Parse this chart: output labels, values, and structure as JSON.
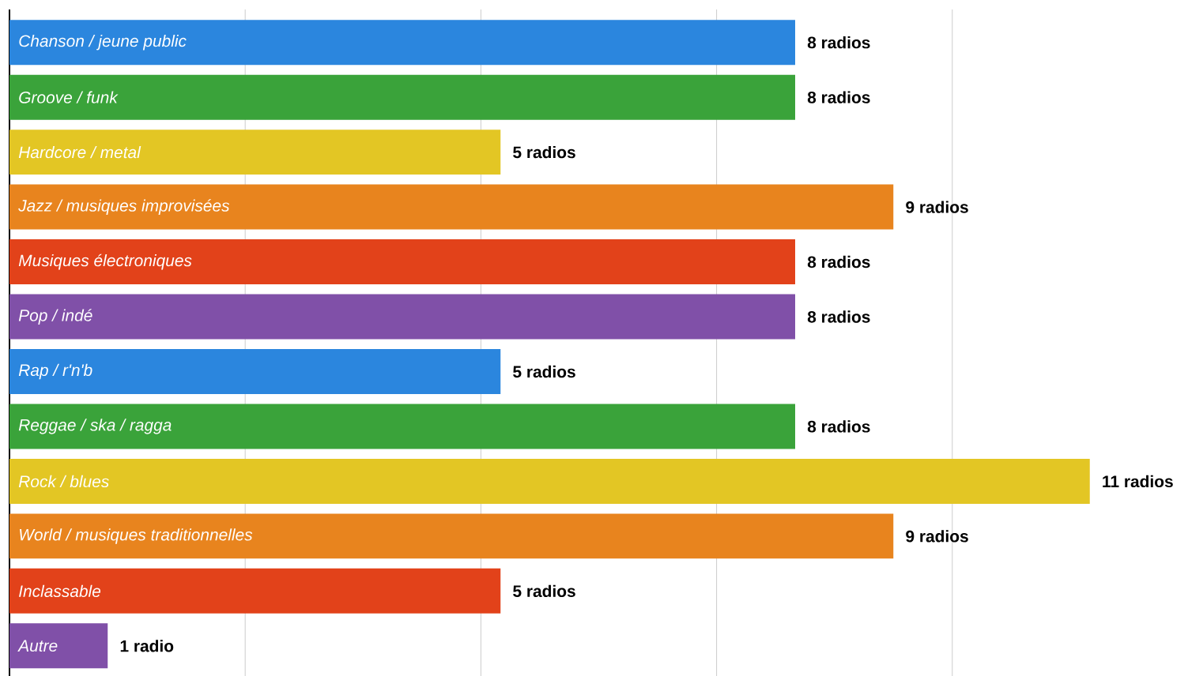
{
  "chart_data": {
    "type": "bar",
    "orientation": "horizontal",
    "categories": [
      "Chanson / jeune public",
      "Groove / funk",
      "Hardcore / metal",
      "Jazz / musiques improvisées",
      "Musiques électroniques",
      "Pop / indé",
      "Rap / r'n'b",
      "Reggae / ska / ragga",
      "Rock / blues",
      "World / musiques traditionnelles",
      "Inclassable",
      "Autre"
    ],
    "values": [
      8,
      8,
      5,
      9,
      8,
      8,
      5,
      8,
      11,
      9,
      5,
      1
    ],
    "value_labels": [
      "8 radios",
      "8 radios",
      "5 radios",
      "9 radios",
      "8 radios",
      "8 radios",
      "5 radios",
      "8 radios",
      "11 radios",
      "9 radios",
      "5 radios",
      "1 radio"
    ],
    "colors": [
      "#2b86de",
      "#3aa33a",
      "#e3c624",
      "#e8841e",
      "#e2421a",
      "#8050a8",
      "#2b86de",
      "#3aa33a",
      "#e3c624",
      "#e8841e",
      "#e2421a",
      "#8050a8"
    ],
    "xticks": [
      {
        "value": 2.4,
        "label": null
      },
      {
        "value": 4.8,
        "label": null
      },
      {
        "value": 7.2,
        "label": null
      },
      {
        "value": 9.6,
        "label": null
      }
    ],
    "grid": "x"
  }
}
